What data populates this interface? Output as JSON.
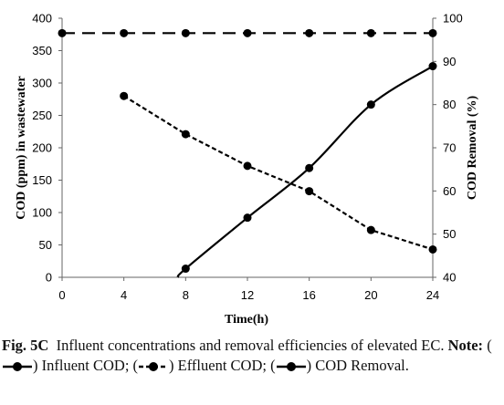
{
  "chart_data": {
    "type": "line",
    "x": [
      0,
      4,
      8,
      12,
      16,
      20,
      24
    ],
    "xlabel": "Time(h)",
    "ylabel": "COD (ppm)  in wastewater",
    "y2label": "COD Removal  (%)",
    "xlim": [
      0,
      24
    ],
    "ylim": [
      0,
      400
    ],
    "y2lim": [
      40,
      100
    ],
    "xticks": [
      "0",
      "4",
      "8",
      "12",
      "16",
      "20",
      "24"
    ],
    "yticks": [
      "0",
      "50",
      "100",
      "150",
      "200",
      "250",
      "300",
      "350",
      "400"
    ],
    "y2ticks": [
      "40",
      "50",
      "60",
      "70",
      "80",
      "90",
      "100"
    ],
    "grid": false,
    "series": [
      {
        "name": "Influent COD",
        "axis": "left",
        "style": "long-dash",
        "x": [
          0,
          4,
          8,
          12,
          16,
          20,
          24
        ],
        "values": [
          377,
          377,
          377,
          377,
          377,
          377,
          377
        ]
      },
      {
        "name": "Effluent COD",
        "axis": "left",
        "style": "short-dash",
        "x": [
          4,
          8,
          12,
          16,
          20,
          24
        ],
        "values": [
          280,
          221,
          172,
          133,
          73,
          43
        ]
      },
      {
        "name": "COD Removal",
        "axis": "right",
        "style": "solid",
        "x": [
          7.5,
          8,
          12,
          16,
          20,
          24
        ],
        "values": [
          40,
          42,
          53.8,
          65.3,
          80,
          88.9
        ],
        "markers_from": 1
      }
    ]
  },
  "caption": {
    "label": "Fig. 5C",
    "text": "Influent concentrations and removal efficiencies of el­evated EC.",
    "note_label": "Note:",
    "item1": "Influent COD;",
    "item2": "Effluent COD;",
    "item3": "COD Removal."
  },
  "colors": {
    "line": "#000000",
    "text": "#111111"
  }
}
